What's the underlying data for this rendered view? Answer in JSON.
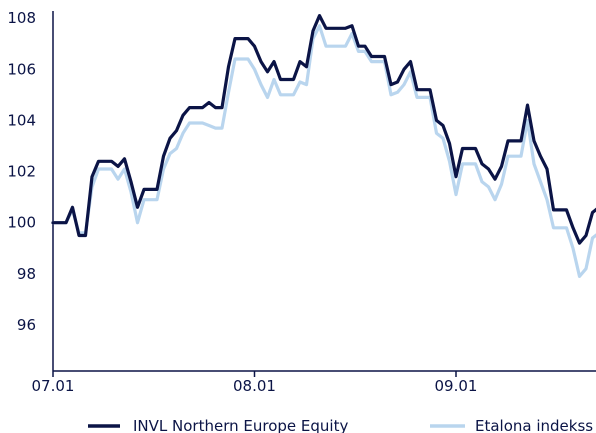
{
  "chart_data": {
    "type": "line",
    "x": [
      "07.01",
      "07.02",
      "07.03",
      "07.04",
      "07.05",
      "07.06",
      "07.07",
      "07.08",
      "07.09",
      "07.10",
      "07.11",
      "07.12",
      "07.13",
      "07.14",
      "07.15",
      "07.16",
      "07.17",
      "07.18",
      "07.19",
      "07.20",
      "07.21",
      "07.22",
      "07.23",
      "07.24",
      "07.25",
      "07.26",
      "07.27",
      "07.28",
      "07.29",
      "07.30",
      "07.31",
      "08.01",
      "08.02",
      "08.03",
      "08.04",
      "08.05",
      "08.06",
      "08.07",
      "08.08",
      "08.09",
      "08.10",
      "08.11",
      "08.12",
      "08.13",
      "08.14",
      "08.15",
      "08.16",
      "08.17",
      "08.18",
      "08.19",
      "08.20",
      "08.21",
      "08.22",
      "08.23",
      "08.24",
      "08.25",
      "08.26",
      "08.27",
      "08.28",
      "08.29",
      "08.30",
      "08.31",
      "09.01",
      "09.02",
      "09.03",
      "09.04",
      "09.05",
      "09.06",
      "09.07",
      "09.08",
      "09.09",
      "09.10",
      "09.11",
      "09.12",
      "09.13",
      "09.14",
      "09.15",
      "09.16",
      "09.17",
      "09.18",
      "09.19",
      "09.20",
      "09.21",
      "09.22",
      "09.23"
    ],
    "x_ticks": [
      "07.01",
      "08.01",
      "09.01"
    ],
    "ylim": [
      94.2,
      108.2
    ],
    "y_ticks": [
      96,
      98,
      100,
      102,
      104,
      106,
      108
    ],
    "series": [
      {
        "name": "INVL Northern Europe Equity",
        "color": "#0b1446",
        "values": [
          100.0,
          100.0,
          100.0,
          100.6,
          99.5,
          99.5,
          101.8,
          102.4,
          102.4,
          102.4,
          102.2,
          102.5,
          101.6,
          100.6,
          101.3,
          101.3,
          101.3,
          102.6,
          103.3,
          103.6,
          104.2,
          104.5,
          104.5,
          104.5,
          104.7,
          104.5,
          104.5,
          106.1,
          107.2,
          107.2,
          107.2,
          106.9,
          106.3,
          105.9,
          106.3,
          105.6,
          105.6,
          105.6,
          106.3,
          106.1,
          107.5,
          108.1,
          107.6,
          107.6,
          107.6,
          107.6,
          107.7,
          106.9,
          106.9,
          106.5,
          106.5,
          106.5,
          105.4,
          105.5,
          106.0,
          106.3,
          105.2,
          105.2,
          105.2,
          104.0,
          103.8,
          103.1,
          101.8,
          102.9,
          102.9,
          102.9,
          102.3,
          102.1,
          101.7,
          102.2,
          103.2,
          103.2,
          103.2,
          104.6,
          103.2,
          102.6,
          102.1,
          100.5,
          100.5,
          100.5,
          99.8,
          99.2,
          99.5,
          100.4,
          100.6
        ]
      },
      {
        "name": "Etalona indekss",
        "color": "#b9d5ee",
        "values": [
          100.0,
          100.0,
          100.0,
          100.5,
          99.6,
          99.6,
          101.4,
          102.1,
          102.1,
          102.1,
          101.7,
          102.1,
          101.2,
          100.0,
          100.9,
          100.9,
          100.9,
          102.1,
          102.7,
          102.9,
          103.5,
          103.9,
          103.9,
          103.9,
          103.8,
          103.7,
          103.7,
          105.1,
          106.4,
          106.4,
          106.4,
          106.0,
          105.4,
          104.9,
          105.6,
          105.0,
          105.0,
          105.0,
          105.5,
          105.4,
          107.2,
          107.7,
          106.9,
          106.9,
          106.9,
          106.9,
          107.4,
          106.7,
          106.7,
          106.3,
          106.3,
          106.3,
          105.0,
          105.1,
          105.4,
          105.9,
          104.9,
          104.9,
          104.9,
          103.5,
          103.3,
          102.4,
          101.1,
          102.3,
          102.3,
          102.3,
          101.6,
          101.4,
          100.9,
          101.5,
          102.6,
          102.6,
          102.6,
          104.0,
          102.3,
          101.6,
          100.9,
          99.8,
          99.8,
          99.8,
          99.0,
          97.9,
          98.2,
          99.4,
          99.6
        ]
      }
    ]
  }
}
